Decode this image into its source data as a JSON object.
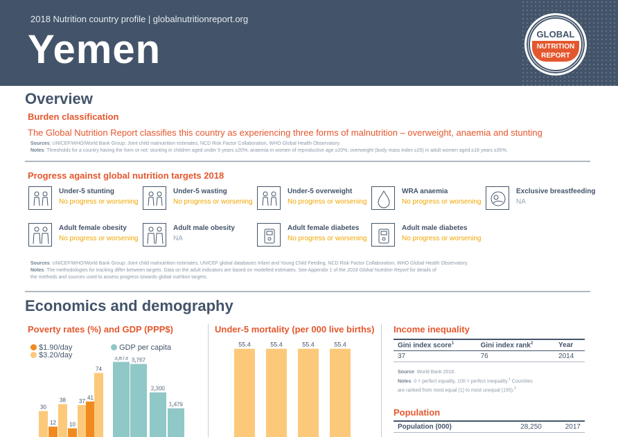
{
  "header": {
    "profile_line": "2018 Nutrition country profile  |  globalnutritionreport.org",
    "country": "Yemen",
    "logo": {
      "line1": "GLOBAL",
      "line2": "NUTRITION",
      "line3": "REPORT"
    }
  },
  "overview": {
    "title": "Overview",
    "burden_title": "Burden classification",
    "burden_text": "The Global Nutrition Report classifies this country as experiencing three forms of malnutrition – overweight, anaemia and stunting",
    "sources_label": "Sources",
    "sources_text": ": UNICEF/WHO/World Bank Group: Joint child malnutrition estimates, NCD Risk Factor Collaboration, WHO Global Health Observatory.",
    "notes_label": "Notes",
    "notes_text": ": Thresholds for a country having the form or not: stunting in children aged under 5 years ≥20%; anaemia in women of reproductive age ≥20%; overweight (body mass index ≥25) in adult women aged ≥18 years ≥35%."
  },
  "progress": {
    "title": "Progress against global nutrition targets 2018",
    "targets": [
      {
        "name": "Under-5 stunting",
        "status": "No progress or worsening",
        "icon": "children-icon"
      },
      {
        "name": "Under-5 wasting",
        "status": "No progress or worsening",
        "icon": "children-icon"
      },
      {
        "name": "Under-5 overweight",
        "status": "No progress or worsening",
        "icon": "children-icon"
      },
      {
        "name": "WRA anaemia",
        "status": "No progress or worsening",
        "icon": "blood-drop-icon"
      },
      {
        "name": "Exclusive breastfeeding",
        "status": "NA",
        "icon": "breastfeeding-icon"
      },
      {
        "name": "Adult female obesity",
        "status": "No progress or worsening",
        "icon": "adults-icon"
      },
      {
        "name": "Adult male obesity",
        "status": "NA",
        "icon": "adults-icon"
      },
      {
        "name": "Adult female diabetes",
        "status": "No progress or worsening",
        "icon": "glucose-meter-icon"
      },
      {
        "name": "Adult male diabetes",
        "status": "No progress or worsening",
        "icon": "glucose-meter-icon"
      }
    ],
    "sources_label": "Sources",
    "sources_text": ": UNICEF/WHO/World Bank Group: Joint child malnutrition estimates, UNICEF global databases Infant and Young Child Feeding, NCD Risk Factor Collaboration, WHO Global Health Observatory.",
    "notes_label": "Notes",
    "notes_text_1": ": The methodologies for tracking differ between targets. Data on the adult indicators are based on modelled estimates. See Appendix 1 of the",
    "notes_italic": "2018 Global Nutrition Report",
    "notes_text_2": "for details of",
    "notes_text_3": "the methods and sources used to assess progress towards global nutrition targets."
  },
  "economics": {
    "title": "Economics and demography",
    "poverty_title": "Poverty rates (%) and GDP (PPP$)",
    "mortality_title": "Under-5 mortality (per 000 live births)",
    "income_title": "Income inequality",
    "income_table": {
      "headers": [
        "Gini index score",
        "Gini index rank",
        "Year"
      ],
      "header_sups": [
        "1",
        "2",
        ""
      ],
      "row": [
        "37",
        "76",
        "2014"
      ]
    },
    "income_source_label": "Source",
    "income_source_text": ": World Bank 2018.",
    "income_notes_label": "Notes",
    "income_notes_text": ": 0 = perfect equality, 100 = perfect inequality.",
    "income_notes_sup1": "1",
    "income_notes_text2": " Countries",
    "income_notes_text3": "are ranked from most equal (1) to most unequal (155).",
    "income_notes_sup2": "2",
    "population_title": "Population",
    "population_row": [
      "Population (000)",
      "28,250",
      "2017"
    ]
  },
  "chart_data": [
    {
      "type": "bar",
      "title": "Poverty rates (%) and GDP (PPP$)",
      "legend": [
        "$1.90/day",
        "$3.20/day",
        "GDP per capita"
      ],
      "colors": {
        "$1.90/day": "#f08a1e",
        "$3.20/day": "#fcc97a",
        "GDP per capita": "#8fc8c6"
      },
      "poverty_bars": [
        {
          "series": "$1.90/day",
          "label": ""
        },
        {
          "series": "$3.20/day",
          "label": "30",
          "value": 30
        },
        {
          "series": "$1.90/day",
          "label": "12",
          "value": 12
        },
        {
          "series": "$3.20/day",
          "label": "38",
          "value": 38
        },
        {
          "series": "$1.90/day",
          "label": "10",
          "value": 10
        },
        {
          "series": "$3.20/day",
          "label": "37",
          "value": 37
        },
        {
          "series": "$1.90/day",
          "label": "41",
          "value": 41
        },
        {
          "series": "$3.20/day",
          "label": "74",
          "value": 74
        }
      ],
      "gdp_bars": [
        {
          "label": "3,873",
          "value": 3873
        },
        {
          "label": "3,767",
          "value": 3767
        },
        {
          "label": "2,300",
          "value": 2300
        },
        {
          "label": "1,479",
          "value": 1479
        }
      ]
    },
    {
      "type": "bar",
      "title": "Under-5 mortality (per 000 live births)",
      "series": [
        {
          "values": [
            55.4,
            55.4,
            55.4,
            55.4
          ]
        }
      ],
      "labels": [
        "55.4",
        "55.4",
        "55.4",
        "55.4"
      ],
      "color": "#fcc97a"
    }
  ]
}
